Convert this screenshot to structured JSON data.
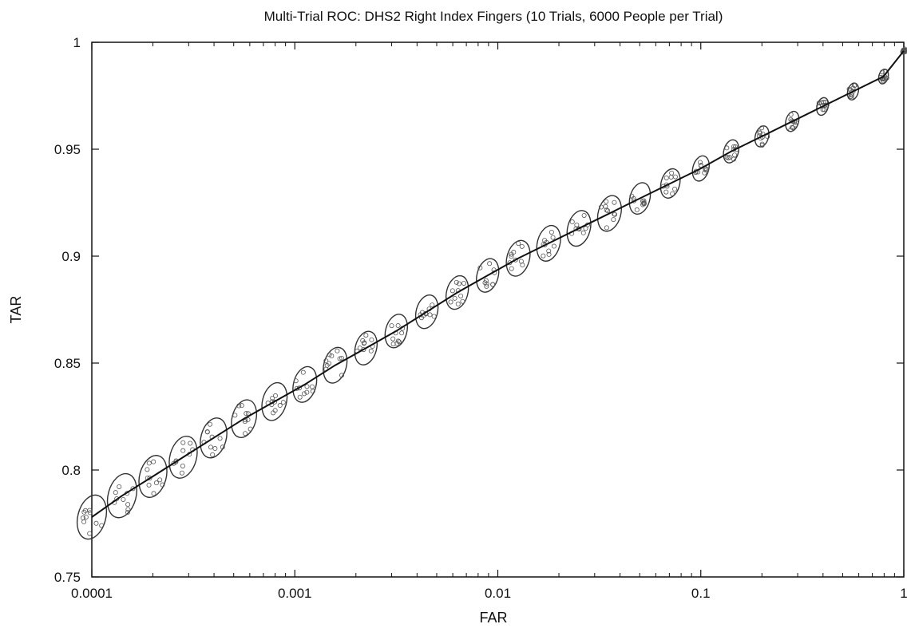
{
  "chart_data": {
    "type": "line",
    "title": "Multi-Trial ROC: DHS2 Right Index Fingers (10 Trials, 6000 People per Trial)",
    "xlabel": "FAR",
    "ylabel": "TAR",
    "x_scale": "log",
    "xlim": [
      0.0001,
      1
    ],
    "ylim": [
      0.75,
      1
    ],
    "x_ticks": [
      0.0001,
      0.001,
      0.01,
      0.1,
      1
    ],
    "x_tick_labels": [
      "0.0001",
      "0.001",
      "0.01",
      "0.1",
      "1"
    ],
    "y_ticks": [
      0.75,
      0.8,
      0.85,
      0.9,
      0.95,
      1
    ],
    "y_tick_labels": [
      "0.75",
      "0.8",
      "0.85",
      "0.9",
      "0.95",
      "1"
    ],
    "grid": false,
    "legend": "none",
    "colors": {
      "line": "#111111",
      "ellipse": "#333333",
      "point": "#555555"
    },
    "series": [
      {
        "style": "line",
        "x": [
          0.0001,
          0.000141,
          0.0002,
          0.000282,
          0.000398,
          0.000562,
          0.000794,
          0.00112,
          0.00158,
          0.00224,
          0.00316,
          0.00447,
          0.00631,
          0.00891,
          0.0126,
          0.0178,
          0.0251,
          0.0355,
          0.0501,
          0.0708,
          0.1,
          0.141,
          0.2,
          0.282,
          0.398,
          0.562,
          0.794,
          1
        ],
        "y": [
          0.778,
          0.788,
          0.797,
          0.806,
          0.815,
          0.824,
          0.832,
          0.84,
          0.849,
          0.857,
          0.865,
          0.874,
          0.883,
          0.891,
          0.899,
          0.906,
          0.913,
          0.92,
          0.927,
          0.934,
          0.941,
          0.949,
          0.956,
          0.963,
          0.97,
          0.977,
          0.984,
          0.996
        ]
      },
      {
        "style": "confidence-ellipses",
        "centers_x": [
          0.0001,
          0.000141,
          0.0002,
          0.000282,
          0.000398,
          0.000562,
          0.000794,
          0.00112,
          0.00158,
          0.00224,
          0.00316,
          0.00447,
          0.00631,
          0.00891,
          0.0126,
          0.0178,
          0.0251,
          0.0355,
          0.0501,
          0.0708,
          0.1,
          0.141,
          0.2,
          0.282,
          0.398,
          0.562,
          0.794,
          1
        ],
        "centers_y": [
          0.778,
          0.788,
          0.797,
          0.806,
          0.815,
          0.824,
          0.832,
          0.84,
          0.849,
          0.857,
          0.865,
          0.874,
          0.883,
          0.891,
          0.899,
          0.906,
          0.913,
          0.92,
          0.927,
          0.934,
          0.941,
          0.949,
          0.956,
          0.963,
          0.97,
          0.977,
          0.984,
          0.996
        ],
        "half_height_y": [
          0.0105,
          0.0105,
          0.01,
          0.01,
          0.0095,
          0.009,
          0.009,
          0.0085,
          0.0085,
          0.008,
          0.008,
          0.008,
          0.008,
          0.008,
          0.0085,
          0.0085,
          0.0085,
          0.0085,
          0.0075,
          0.007,
          0.006,
          0.0055,
          0.005,
          0.0048,
          0.0042,
          0.004,
          0.0035,
          0.0012
        ],
        "note": "trial points scattered within each ellipse"
      }
    ]
  }
}
